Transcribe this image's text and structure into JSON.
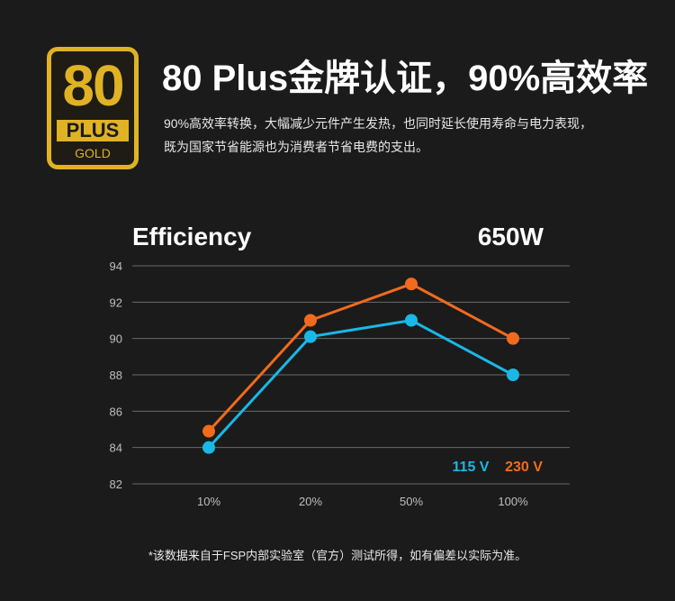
{
  "badge": {
    "number": "80",
    "plus": "PLUS",
    "tier": "GOLD"
  },
  "header": {
    "headline": "80 Plus金牌认证，90%高效率",
    "description_line1": "90%高效率转换，大幅减少元件产生发热，也同时延长使用寿命与电力表现，",
    "description_line2": "既为国家节省能源也为消费者节省电费的支出。"
  },
  "chart_data": {
    "type": "line",
    "title": "Efficiency",
    "subtitle": "650W",
    "categories": [
      "10%",
      "20%",
      "50%",
      "100%"
    ],
    "yticks": [
      82,
      84,
      86,
      88,
      90,
      92,
      94
    ],
    "ylim": [
      82,
      94
    ],
    "grid": true,
    "legend_position": "bottom-right",
    "series": [
      {
        "name": "115 V",
        "values": [
          84.0,
          90.1,
          91.0,
          88.0
        ],
        "color": "#19b8e6"
      },
      {
        "name": "230 V",
        "values": [
          84.9,
          91.0,
          93.0,
          90.0
        ],
        "color": "#f26b1d"
      }
    ]
  },
  "footnote": "*该数据来自于FSP内部实验室（官方）测试所得，如有偏差以实际为准。"
}
